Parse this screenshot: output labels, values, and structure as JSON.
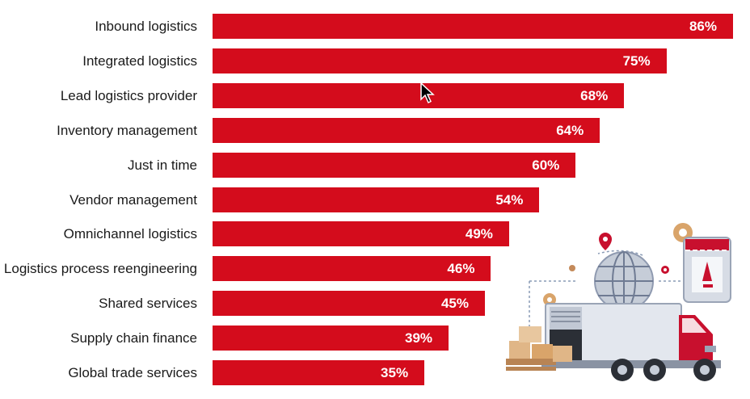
{
  "chart_data": {
    "type": "bar",
    "orientation": "horizontal",
    "categories": [
      "Inbound logistics",
      "Integrated logistics",
      "Lead logistics provider",
      "Inventory management",
      "Just in time",
      "Vendor management",
      "Omnichannel logistics",
      "Logistics process reengineering",
      "Shared services",
      "Supply chain finance",
      "Global trade services"
    ],
    "values": [
      86,
      75,
      68,
      64,
      60,
      54,
      49,
      46,
      45,
      39,
      35
    ],
    "value_labels": [
      "86%",
      "75%",
      "68%",
      "64%",
      "60%",
      "54%",
      "49%",
      "46%",
      "45%",
      "39%",
      "35%"
    ],
    "unit": "%",
    "bar_color": "#d40c1c",
    "grid": false,
    "legend": "none"
  },
  "colors": {
    "bar": "#d40c1c",
    "label_text": "#1a1a1a",
    "value_text": "#ffffff"
  },
  "icons": [
    "mouse-cursor-icon",
    "delivery-truck-illustration"
  ]
}
